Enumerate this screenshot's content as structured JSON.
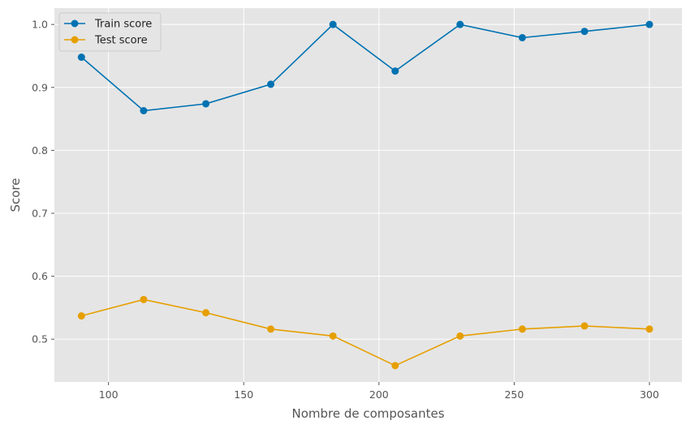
{
  "chart_data": {
    "type": "line",
    "title": "",
    "xlabel": "Nombre de composantes",
    "ylabel": "Score",
    "xlim": [
      80,
      312
    ],
    "ylim": [
      0.432,
      1.026
    ],
    "xticks": [
      100,
      150,
      200,
      250,
      300
    ],
    "yticks": [
      0.5,
      0.6,
      0.7,
      0.8,
      0.9,
      1.0
    ],
    "xtick_labels": [
      "100",
      "150",
      "200",
      "250",
      "300"
    ],
    "ytick_labels": [
      "0.5",
      "0.6",
      "0.7",
      "0.8",
      "0.9",
      "1.0"
    ],
    "grid": true,
    "legend_position": "top-left",
    "x": [
      90,
      113,
      136,
      160,
      183,
      206,
      230,
      253,
      276,
      300
    ],
    "series": [
      {
        "name": "Train score",
        "color": "#0072b2",
        "values": [
          0.948,
          0.863,
          0.874,
          0.905,
          1.0,
          0.926,
          1.0,
          0.979,
          0.989,
          1.0
        ]
      },
      {
        "name": "Test score",
        "color": "#e69f00",
        "values": [
          0.537,
          0.563,
          0.542,
          0.516,
          0.505,
          0.458,
          0.505,
          0.516,
          0.521,
          0.516
        ]
      }
    ]
  }
}
